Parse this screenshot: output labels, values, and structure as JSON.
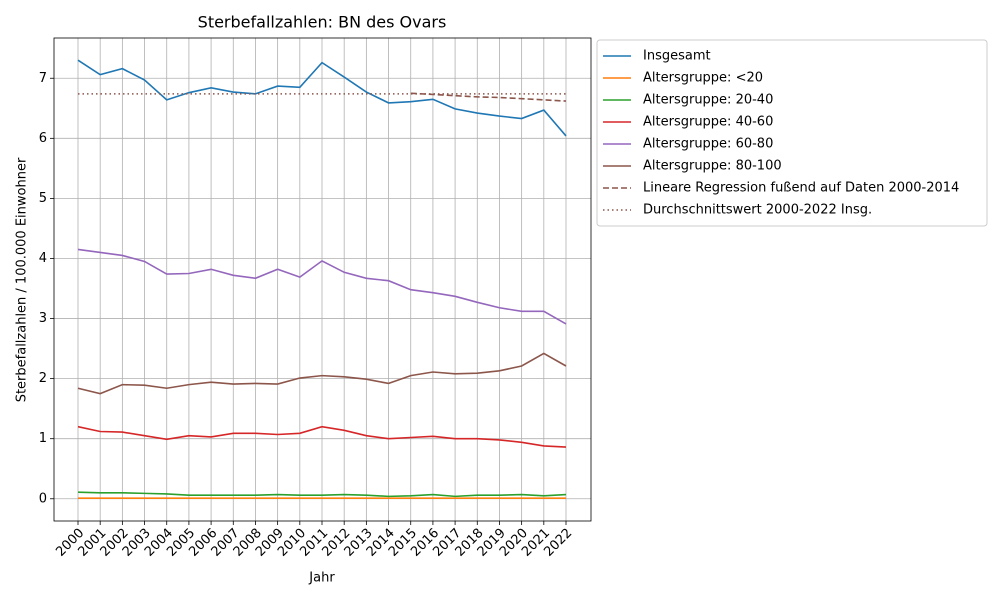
{
  "chart_data": {
    "type": "line",
    "title": "Sterbefallzahlen: BN des Ovars",
    "x_label": "Jahr",
    "y_label": "Sterbefallzahlen / 100.000 Einwohner",
    "categories": [
      "2000",
      "2001",
      "2002",
      "2003",
      "2004",
      "2005",
      "2006",
      "2007",
      "2008",
      "2009",
      "2010",
      "2011",
      "2012",
      "2013",
      "2014",
      "2015",
      "2016",
      "2017",
      "2018",
      "2019",
      "2020",
      "2021",
      "2022"
    ],
    "ylim": [
      -0.37,
      7.67
    ],
    "yticks": [
      0,
      1,
      2,
      3,
      4,
      5,
      6,
      7
    ],
    "grid": true,
    "legend": "outside right",
    "series": [
      {
        "name": "Insgesamt",
        "color": "#1f77b4",
        "style": "solid",
        "values": [
          7.3,
          7.06,
          7.16,
          6.97,
          6.64,
          6.76,
          6.84,
          6.77,
          6.74,
          6.87,
          6.85,
          7.26,
          7.02,
          6.77,
          6.59,
          6.61,
          6.65,
          6.49,
          6.42,
          6.37,
          6.33,
          6.47,
          6.04
        ]
      },
      {
        "name": "Altersgruppe: <20",
        "color": "#ff7f0e",
        "style": "solid",
        "values": [
          0.01,
          0.01,
          0.01,
          0.01,
          0.01,
          0.01,
          0.01,
          0.01,
          0.01,
          0.01,
          0.01,
          0.01,
          0.01,
          0.01,
          0.01,
          0.01,
          0.01,
          0.01,
          0.01,
          0.01,
          0.01,
          0.01,
          0.01
        ]
      },
      {
        "name": "Altersgruppe: 20-40",
        "color": "#2ca02c",
        "style": "solid",
        "values": [
          0.11,
          0.1,
          0.1,
          0.09,
          0.08,
          0.06,
          0.06,
          0.06,
          0.06,
          0.07,
          0.06,
          0.06,
          0.07,
          0.06,
          0.04,
          0.05,
          0.07,
          0.04,
          0.06,
          0.06,
          0.07,
          0.05,
          0.07
        ]
      },
      {
        "name": "Altersgruppe: 40-60",
        "color": "#d62728",
        "style": "solid",
        "values": [
          1.2,
          1.12,
          1.11,
          1.05,
          0.99,
          1.05,
          1.03,
          1.09,
          1.09,
          1.07,
          1.09,
          1.2,
          1.14,
          1.05,
          1.0,
          1.02,
          1.04,
          1.0,
          1.0,
          0.98,
          0.94,
          0.88,
          0.86
        ]
      },
      {
        "name": "Altersgruppe: 60-80",
        "color": "#9467bd",
        "style": "solid",
        "values": [
          4.15,
          4.1,
          4.05,
          3.95,
          3.74,
          3.75,
          3.82,
          3.72,
          3.67,
          3.82,
          3.69,
          3.96,
          3.77,
          3.67,
          3.63,
          3.48,
          3.43,
          3.37,
          3.27,
          3.18,
          3.12,
          3.12,
          2.91
        ]
      },
      {
        "name": "Altersgruppe: 80-100",
        "color": "#8c564b",
        "style": "solid",
        "values": [
          1.84,
          1.75,
          1.9,
          1.89,
          1.84,
          1.9,
          1.94,
          1.91,
          1.92,
          1.91,
          2.01,
          2.05,
          2.03,
          1.99,
          1.92,
          2.05,
          2.11,
          2.08,
          2.09,
          2.13,
          2.21,
          2.42,
          2.21
        ]
      },
      {
        "name": "Lineare Regression fußend auf Daten 2000-2014",
        "color": "#8c564b",
        "style": "dashed",
        "values": [
          null,
          null,
          null,
          null,
          null,
          null,
          null,
          null,
          null,
          null,
          null,
          null,
          null,
          null,
          null,
          6.75,
          6.73,
          6.71,
          6.69,
          6.68,
          6.66,
          6.64,
          6.62
        ]
      },
      {
        "name": "Durchschnittswert 2000-2022 Insg.",
        "color": "#8c564b",
        "style": "dotted",
        "values": [
          6.74,
          6.74,
          6.74,
          6.74,
          6.74,
          6.74,
          6.74,
          6.74,
          6.74,
          6.74,
          6.74,
          6.74,
          6.74,
          6.74,
          6.74,
          6.74,
          6.74,
          6.74,
          6.74,
          6.74,
          6.74,
          6.74,
          6.74
        ]
      }
    ]
  }
}
